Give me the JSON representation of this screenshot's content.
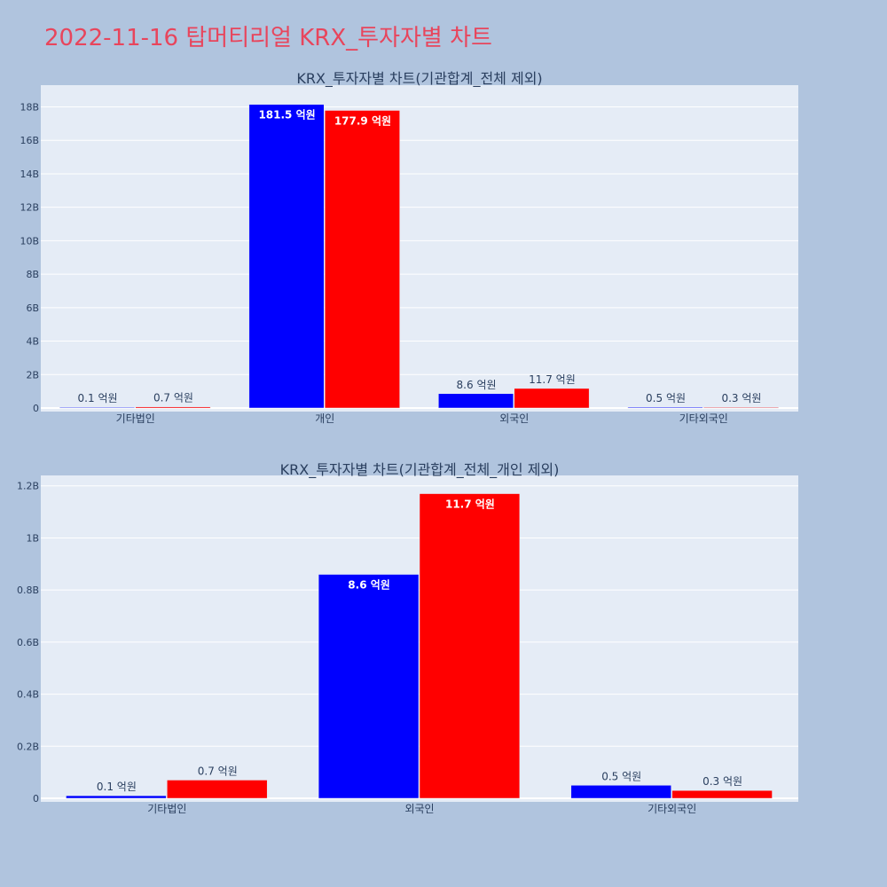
{
  "page": {
    "title": "2022-11-16 탑머티리얼 KRX_투자자별 차트"
  },
  "colors": {
    "background": "#b0c4de",
    "plot_background": "#e5ecf6",
    "title": "#e8455c",
    "series_a": "#0000ff",
    "series_b": "#ff0000"
  },
  "chart_data": [
    {
      "type": "bar",
      "title": "KRX_투자자별 차트(기관합계_전체 제외)",
      "categories": [
        "기타법인",
        "개인",
        "외국인",
        "기타외국인"
      ],
      "series": [
        {
          "color": "#0000ff",
          "values": [
            10000000,
            18150000000,
            860000000,
            50000000
          ],
          "labels": [
            "0.1 억원",
            "181.5 억원",
            "8.6 억원",
            "0.5 억원"
          ]
        },
        {
          "color": "#ff0000",
          "values": [
            70000000,
            17790000000,
            1170000000,
            30000000
          ],
          "labels": [
            "0.7 억원",
            "177.9 억원",
            "11.7 억원",
            "0.3 억원"
          ]
        }
      ],
      "ylim": [
        0,
        19300000000
      ],
      "yticks": [
        0,
        2000000000,
        4000000000,
        6000000000,
        8000000000,
        10000000000,
        12000000000,
        14000000000,
        16000000000,
        18000000000
      ],
      "ytick_labels": [
        "0",
        "2B",
        "4B",
        "6B",
        "8B",
        "10B",
        "12B",
        "14B",
        "16B",
        "18B"
      ],
      "grid": true,
      "legend": "none"
    },
    {
      "type": "bar",
      "title": "KRX_투자자별 차트(기관합계_전체_개인 제외)",
      "categories": [
        "기타법인",
        "외국인",
        "기타외국인"
      ],
      "series": [
        {
          "color": "#0000ff",
          "values": [
            10000000,
            860000000,
            50000000
          ],
          "labels": [
            "0.1 억원",
            "8.6 억원",
            "0.5 억원"
          ]
        },
        {
          "color": "#ff0000",
          "values": [
            70000000,
            1170000000,
            30000000
          ],
          "labels": [
            "0.7 억원",
            "11.7 억원",
            "0.3 억원"
          ]
        }
      ],
      "ylim": [
        0,
        1240000000
      ],
      "yticks": [
        0,
        200000000,
        400000000,
        600000000,
        800000000,
        1000000000,
        1200000000
      ],
      "ytick_labels": [
        "0",
        "0.2B",
        "0.4B",
        "0.6B",
        "0.8B",
        "1B",
        "1.2B"
      ],
      "grid": true,
      "legend": "none"
    }
  ]
}
